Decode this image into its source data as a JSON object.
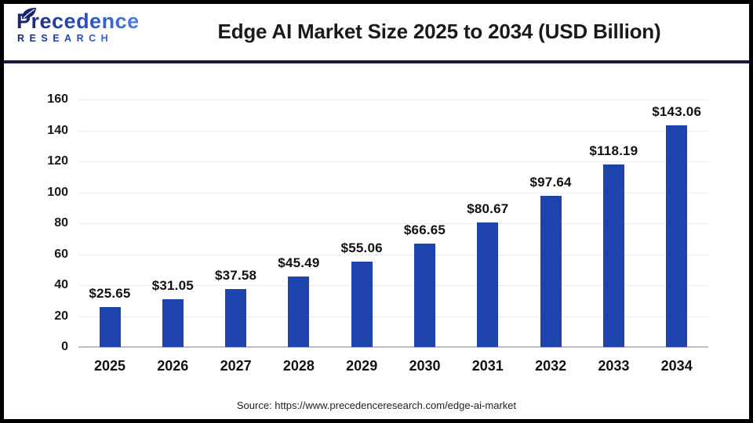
{
  "logo": {
    "name": "Precedence",
    "subname": "RESEARCH"
  },
  "header": {
    "title": "Edge AI Market Size 2025 to 2034 (USD Billion)"
  },
  "footer": {
    "source": "Source: https://www.precedenceresearch.com/edge-ai-market"
  },
  "colors": {
    "bar": "#1C44AC",
    "separator": "#131A44",
    "gridline": "#EBEBEB",
    "baseline": "#BFBFBF",
    "title_text": "#1A1A1A",
    "logo_dark": "#16246B",
    "logo_light": "#4A7FE8"
  },
  "chart_data": {
    "type": "bar",
    "title": "Edge AI Market Size 2025 to 2034 (USD Billion)",
    "categories": [
      "2025",
      "2026",
      "2027",
      "2028",
      "2029",
      "2030",
      "2031",
      "2032",
      "2033",
      "2034"
    ],
    "values": [
      25.65,
      31.05,
      37.58,
      45.49,
      55.06,
      66.65,
      80.67,
      97.64,
      118.19,
      143.06
    ],
    "data_labels": [
      "$25.65",
      "$31.05",
      "$37.58",
      "$45.49",
      "$55.06",
      "$66.65",
      "$80.67",
      "$97.64",
      "$118.19",
      "$143.06"
    ],
    "xlabel": "",
    "ylabel": "",
    "ylim": [
      0,
      160
    ],
    "yticks": [
      0,
      20,
      40,
      60,
      80,
      100,
      120,
      140,
      160
    ],
    "grid": "horizontal-light",
    "legend": "none",
    "bar_color": "#1C44AC",
    "source": "Source: https://www.precedenceresearch.com/edge-ai-market"
  }
}
